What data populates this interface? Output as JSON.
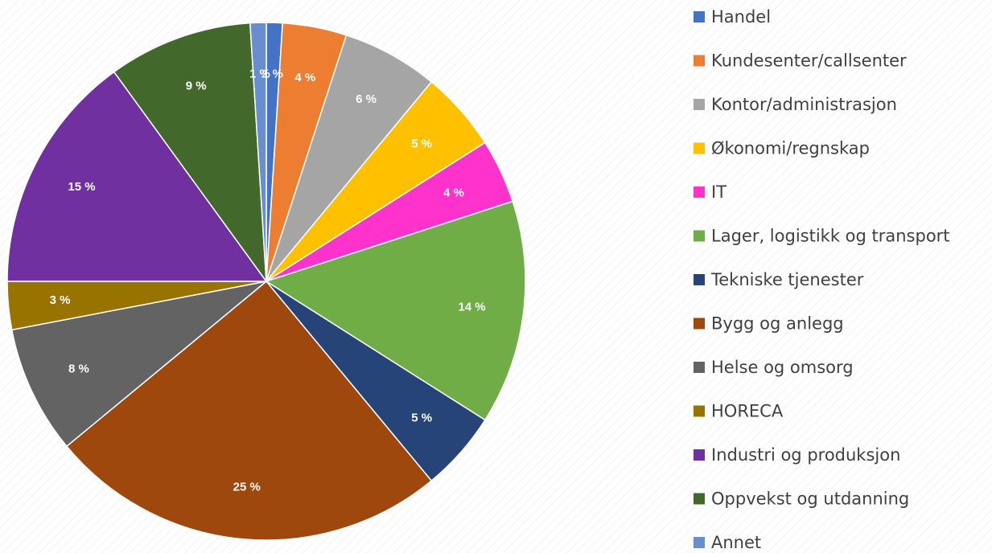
{
  "chart_data": {
    "type": "pie",
    "categories": [
      "Handel",
      "Kundesenter/callsenter",
      "Kontor/administrasjon",
      "Økonomi/regnskap",
      "IT",
      "Lager, logistikk og transport",
      "Tekniske tjenester",
      "Bygg og anlegg",
      "Helse og omsorg",
      "HORECA",
      "Industri og produksjon",
      "Oppvekst og utdanning",
      "Annet"
    ],
    "values": [
      1,
      4,
      6,
      5,
      4,
      14,
      5,
      25,
      8,
      3,
      15,
      9,
      1
    ],
    "value_labels": [
      "1 %",
      "4 %",
      "6 %",
      "5 %",
      "4 %",
      "14 %",
      "5 %",
      "25 %",
      "8 %",
      "3 %",
      "15 %",
      "9 %",
      "1 %"
    ],
    "colors": [
      "#4472c4",
      "#ed7d31",
      "#a5a5a5",
      "#ffc000",
      "#ff33cc",
      "#70ad47",
      "#264478",
      "#9e480e",
      "#636363",
      "#997300",
      "#7030a0",
      "#43682b",
      "#698ed0"
    ],
    "legend": "right"
  }
}
